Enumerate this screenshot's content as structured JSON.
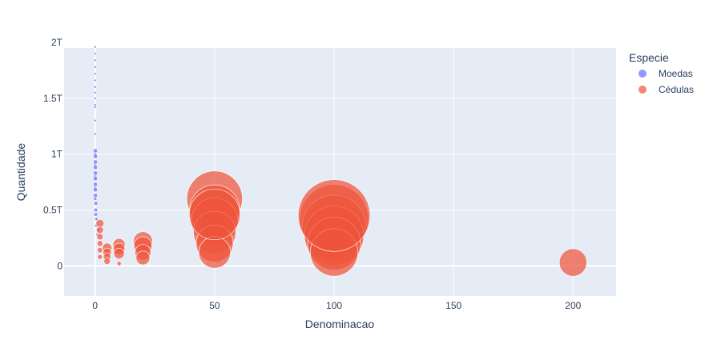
{
  "chart_data": {
    "type": "scatter",
    "xlabel": "Denominacao",
    "ylabel": "Quantidade",
    "xlim": [
      -13,
      218
    ],
    "ylim": [
      -0.22,
      2.0
    ],
    "y_unit": "trillions",
    "x_ticks": [
      {
        "value": 0,
        "label": "0"
      },
      {
        "value": 50,
        "label": "50"
      },
      {
        "value": 100,
        "label": "100"
      },
      {
        "value": 150,
        "label": "150"
      },
      {
        "value": 200,
        "label": "200"
      }
    ],
    "y_ticks": [
      {
        "value": 0,
        "label": "0"
      },
      {
        "value": 0.5,
        "label": "0.5T"
      },
      {
        "value": 1.0,
        "label": "1T"
      },
      {
        "value": 1.5,
        "label": "1.5T"
      },
      {
        "value": 2.0,
        "label": "2T"
      }
    ],
    "grid": true,
    "legend": {
      "title": "Especie",
      "placement": "top-right"
    },
    "series": [
      {
        "name": "Moedas",
        "color": "#636efa",
        "points": [
          {
            "x": 0.01,
            "y": 1.96,
            "s": 0.3
          },
          {
            "x": 0.01,
            "y": 1.9,
            "s": 0.3
          },
          {
            "x": 0.01,
            "y": 1.84,
            "s": 0.3
          },
          {
            "x": 0.01,
            "y": 1.78,
            "s": 0.3
          },
          {
            "x": 0.01,
            "y": 1.72,
            "s": 0.3
          },
          {
            "x": 0.01,
            "y": 1.66,
            "s": 0.3
          },
          {
            "x": 0.01,
            "y": 1.6,
            "s": 0.3
          },
          {
            "x": 0.01,
            "y": 1.55,
            "s": 0.3
          },
          {
            "x": 0.01,
            "y": 1.5,
            "s": 0.3
          },
          {
            "x": 0.01,
            "y": 1.44,
            "s": 0.3
          },
          {
            "x": 0.01,
            "y": 1.42,
            "s": 0.3
          },
          {
            "x": 0.01,
            "y": 1.3,
            "s": 0.3
          },
          {
            "x": 0.01,
            "y": 1.18,
            "s": 0.3
          },
          {
            "x": 0.05,
            "y": 1.0,
            "s": 0.6
          },
          {
            "x": 0.05,
            "y": 0.9,
            "s": 0.6
          },
          {
            "x": 0.05,
            "y": 0.8,
            "s": 0.6
          },
          {
            "x": 0.05,
            "y": 0.7,
            "s": 0.6
          },
          {
            "x": 0.05,
            "y": 0.6,
            "s": 0.6
          },
          {
            "x": 0.1,
            "y": 1.03,
            "s": 0.8
          },
          {
            "x": 0.1,
            "y": 0.98,
            "s": 0.8
          },
          {
            "x": 0.1,
            "y": 0.93,
            "s": 0.8
          },
          {
            "x": 0.1,
            "y": 0.88,
            "s": 0.8
          },
          {
            "x": 0.1,
            "y": 0.83,
            "s": 0.8
          },
          {
            "x": 0.1,
            "y": 0.78,
            "s": 0.8
          },
          {
            "x": 0.1,
            "y": 0.73,
            "s": 0.8
          },
          {
            "x": 0.1,
            "y": 0.68,
            "s": 0.8
          },
          {
            "x": 0.1,
            "y": 0.63,
            "s": 0.8
          },
          {
            "x": 0.25,
            "y": 0.5,
            "s": 0.7
          },
          {
            "x": 0.25,
            "y": 0.56,
            "s": 0.7
          },
          {
            "x": 0.25,
            "y": 0.46,
            "s": 0.7
          },
          {
            "x": 0.5,
            "y": 0.42,
            "s": 0.6
          },
          {
            "x": 0.5,
            "y": 0.36,
            "s": 0.6
          },
          {
            "x": 1,
            "y": 0.32,
            "s": 0.6
          },
          {
            "x": 1,
            "y": 0.28,
            "s": 0.6
          }
        ]
      },
      {
        "name": "Cédulas",
        "color": "#ef553b",
        "points": [
          {
            "x": 2,
            "y": 0.38,
            "s": 1.5
          },
          {
            "x": 2,
            "y": 0.32,
            "s": 1.3
          },
          {
            "x": 2,
            "y": 0.26,
            "s": 1.2
          },
          {
            "x": 2,
            "y": 0.2,
            "s": 1.1
          },
          {
            "x": 2,
            "y": 0.14,
            "s": 1.0
          },
          {
            "x": 2,
            "y": 0.08,
            "s": 0.9
          },
          {
            "x": 5,
            "y": 0.16,
            "s": 1.8
          },
          {
            "x": 5,
            "y": 0.12,
            "s": 1.6
          },
          {
            "x": 5,
            "y": 0.08,
            "s": 1.4
          },
          {
            "x": 5,
            "y": 0.04,
            "s": 1.2
          },
          {
            "x": 10,
            "y": 0.19,
            "s": 2.3
          },
          {
            "x": 10,
            "y": 0.15,
            "s": 2.2
          },
          {
            "x": 10,
            "y": 0.11,
            "s": 2.0
          },
          {
            "x": 10,
            "y": 0.02,
            "s": 0.8
          },
          {
            "x": 20,
            "y": 0.22,
            "s": 3.6
          },
          {
            "x": 20,
            "y": 0.18,
            "s": 3.4
          },
          {
            "x": 20,
            "y": 0.12,
            "s": 3.0
          },
          {
            "x": 20,
            "y": 0.07,
            "s": 2.6
          },
          {
            "x": 50,
            "y": 0.6,
            "s": 10.5
          },
          {
            "x": 50,
            "y": 0.5,
            "s": 9.5
          },
          {
            "x": 50,
            "y": 0.4,
            "s": 8.8
          },
          {
            "x": 50,
            "y": 0.3,
            "s": 8.0
          },
          {
            "x": 50,
            "y": 0.2,
            "s": 7.0
          },
          {
            "x": 50,
            "y": 0.12,
            "s": 6.0
          },
          {
            "x": 50,
            "y": 0.46,
            "s": 9.6
          },
          {
            "x": 100,
            "y": 0.42,
            "s": 13.0
          },
          {
            "x": 100,
            "y": 0.35,
            "s": 12.0
          },
          {
            "x": 100,
            "y": 0.27,
            "s": 11.2
          },
          {
            "x": 100,
            "y": 0.2,
            "s": 10.0
          },
          {
            "x": 100,
            "y": 0.12,
            "s": 9.0
          },
          {
            "x": 100,
            "y": 0.45,
            "s": 13.6
          },
          {
            "x": 200,
            "y": 0.03,
            "s": 5.2
          }
        ]
      }
    ]
  }
}
